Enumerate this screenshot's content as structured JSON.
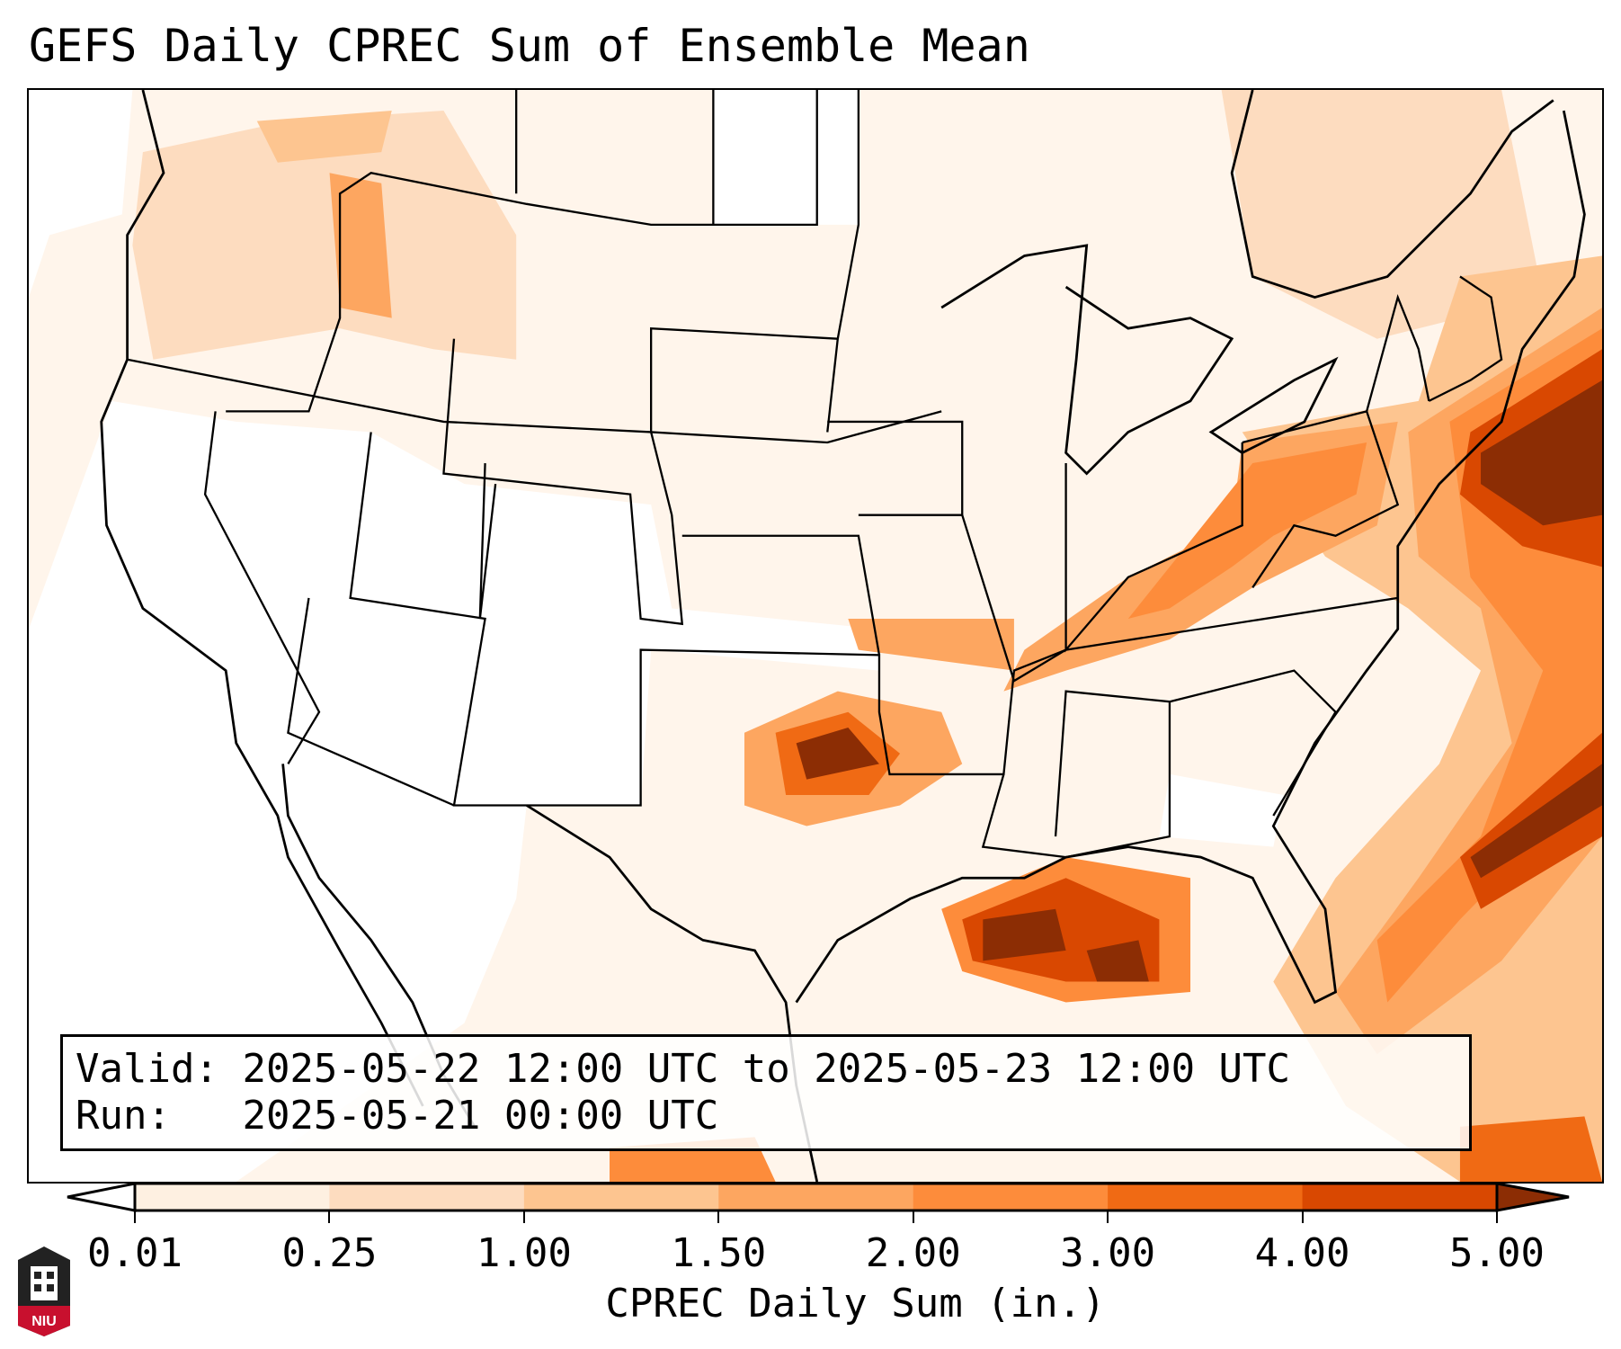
{
  "title": "GEFS Daily CPREC Sum of Ensemble Mean",
  "info": {
    "valid_label": "Valid:",
    "valid_value": "2025-05-22 12:00 UTC to 2025-05-23 12:00 UTC",
    "run_label": "Run:",
    "run_value": "2025-05-21 00:00 UTC"
  },
  "colorbar": {
    "label": "CPREC Daily Sum (in.)",
    "ticks": [
      "0.01",
      "0.25",
      "1.00",
      "1.50",
      "2.00",
      "3.00",
      "4.00",
      "5.00"
    ],
    "colors": [
      "#fef0e1",
      "#fddcbf",
      "#fdc590",
      "#fda660",
      "#fd8c3b",
      "#f06a14",
      "#d94801",
      "#8c2d04"
    ],
    "under_color": "#ffffff"
  },
  "logo": {
    "text": "NIU"
  }
}
